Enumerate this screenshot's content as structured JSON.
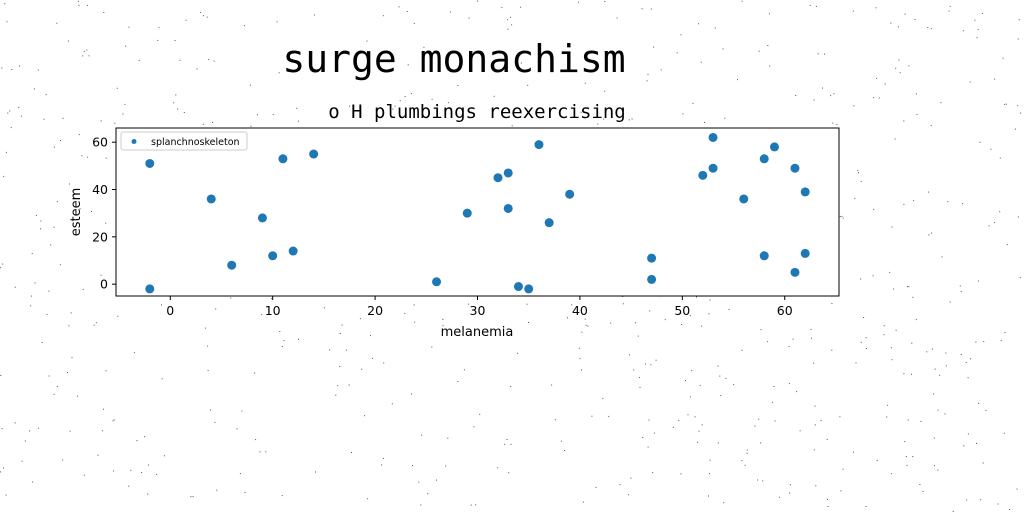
{
  "suptitle": "surge monachism",
  "chart_data": {
    "type": "scatter",
    "title": "o H plumbings reexercising",
    "xlabel": "melanemia",
    "ylabel": "esteem",
    "xlim": [
      -5.3,
      65.3
    ],
    "ylim": [
      -5,
      66
    ],
    "x_ticks": [
      0,
      10,
      20,
      30,
      40,
      50,
      60
    ],
    "y_ticks": [
      0,
      20,
      40,
      60
    ],
    "grid": false,
    "legend_position": "upper-left",
    "series_color": "#1f77b4",
    "series": [
      {
        "name": "splanchnoskeleton",
        "points": [
          {
            "x": -2,
            "y": 51
          },
          {
            "x": -2,
            "y": -2
          },
          {
            "x": 4,
            "y": 36
          },
          {
            "x": 6,
            "y": 8
          },
          {
            "x": 9,
            "y": 28
          },
          {
            "x": 10,
            "y": 12
          },
          {
            "x": 11,
            "y": 53
          },
          {
            "x": 12,
            "y": 14
          },
          {
            "x": 14,
            "y": 55
          },
          {
            "x": 26,
            "y": 1
          },
          {
            "x": 29,
            "y": 30
          },
          {
            "x": 32,
            "y": 45
          },
          {
            "x": 33,
            "y": 47
          },
          {
            "x": 33,
            "y": 32
          },
          {
            "x": 34,
            "y": -1
          },
          {
            "x": 35,
            "y": -2
          },
          {
            "x": 36,
            "y": 59
          },
          {
            "x": 37,
            "y": 26
          },
          {
            "x": 39,
            "y": 38
          },
          {
            "x": 47,
            "y": 11
          },
          {
            "x": 47,
            "y": 2
          },
          {
            "x": 52,
            "y": 46
          },
          {
            "x": 53,
            "y": 62
          },
          {
            "x": 53,
            "y": 49
          },
          {
            "x": 56,
            "y": 36
          },
          {
            "x": 58,
            "y": 53
          },
          {
            "x": 58,
            "y": 12
          },
          {
            "x": 59,
            "y": 58
          },
          {
            "x": 61,
            "y": 49
          },
          {
            "x": 61,
            "y": 5
          },
          {
            "x": 62,
            "y": 39
          },
          {
            "x": 62,
            "y": 13
          }
        ]
      }
    ]
  }
}
